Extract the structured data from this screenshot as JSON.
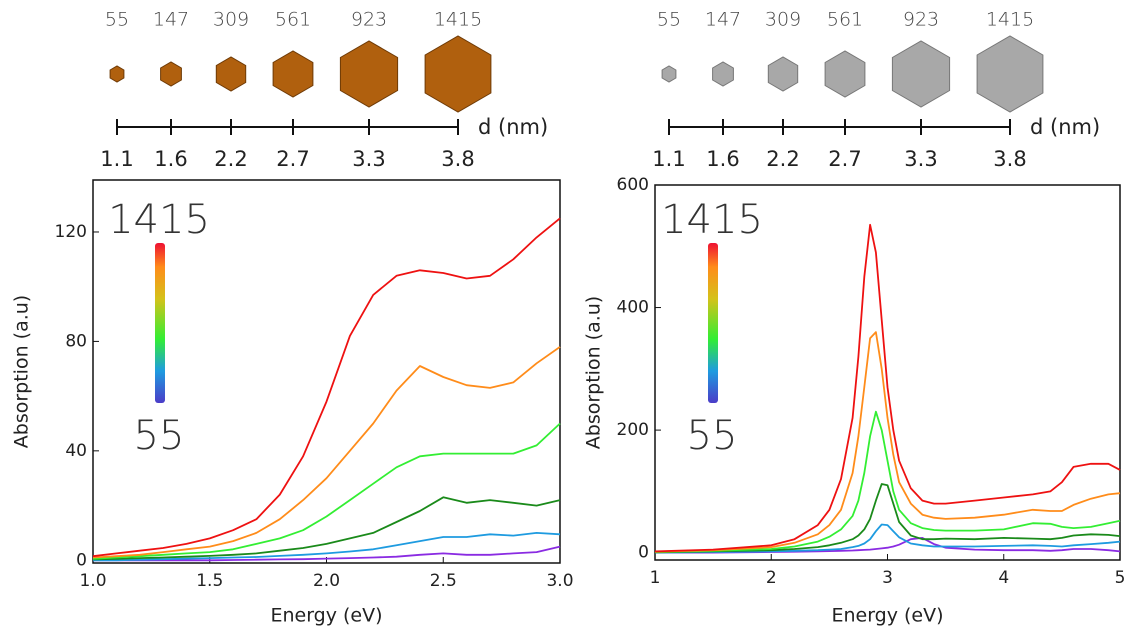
{
  "headers": [
    {
      "atoms": [
        55,
        147,
        309,
        561,
        923,
        1415
      ],
      "diameters": [
        1.1,
        1.6,
        2.2,
        2.7,
        3.3,
        3.8
      ],
      "d_label": "d (nm)"
    },
    {
      "atoms": [
        55,
        147,
        309,
        561,
        923,
        1415
      ],
      "diameters": [
        1.1,
        1.6,
        2.2,
        2.7,
        3.3,
        3.8
      ],
      "d_label": "d (nm)"
    }
  ],
  "chart_data": [
    {
      "type": "line",
      "x_label": "Energy (eV)",
      "y_label": "Absorption (a.u)",
      "colorbar": {
        "top": "1415",
        "bottom": "55"
      },
      "x": [
        1.0,
        1.1,
        1.2,
        1.3,
        1.4,
        1.5,
        1.6,
        1.7,
        1.8,
        1.9,
        2.0,
        2.1,
        2.2,
        2.3,
        2.4,
        2.5,
        2.6,
        2.7,
        2.8,
        2.9,
        3.0
      ],
      "xlim": [
        1.0,
        3.0
      ],
      "xticks": [
        {
          "value": 1.0,
          "label": "1.0"
        },
        1.5,
        {
          "value": 2.0,
          "label": "2.0"
        },
        2.5,
        {
          "value": 3.0,
          "label": "3.0"
        }
      ],
      "ylim": [
        -1,
        139
      ],
      "yticks": [
        0,
        40,
        80,
        120
      ],
      "series": [
        {
          "color": "#8a2be2",
          "values": [
            0,
            0,
            0,
            0,
            0,
            0,
            0.1,
            0.2,
            0.3,
            0.4,
            0.6,
            0.8,
            1,
            1.3,
            2,
            2.5,
            2,
            2,
            2.5,
            3,
            5
          ]
        },
        {
          "color": "#1e9be0",
          "values": [
            0,
            0,
            0.2,
            0.4,
            0.6,
            0.8,
            1,
            1.2,
            1.6,
            2,
            2.5,
            3.2,
            4,
            5.5,
            7,
            8.5,
            8.5,
            9.5,
            9,
            10,
            9.5
          ]
        },
        {
          "color": "#1a8a1a",
          "values": [
            0.3,
            0.5,
            0.8,
            1,
            1.3,
            1.6,
            2,
            2.5,
            3.5,
            4.5,
            6,
            8,
            10,
            14,
            18,
            23,
            21,
            22,
            21,
            20,
            22
          ]
        },
        {
          "color": "#33ee33",
          "values": [
            0.5,
            1,
            1.5,
            2,
            2.5,
            3,
            4,
            6,
            8,
            11,
            16,
            22,
            28,
            34,
            38,
            39,
            39,
            39,
            39,
            42,
            50
          ]
        },
        {
          "color": "#ff8c1a",
          "values": [
            1,
            1.5,
            2,
            3,
            4,
            5,
            7,
            10,
            15,
            22,
            30,
            40,
            50,
            62,
            71,
            67,
            64,
            63,
            65,
            72,
            78
          ]
        },
        {
          "color": "#ee1111",
          "values": [
            1.5,
            2.5,
            3.5,
            4.5,
            6,
            8,
            11,
            15,
            24,
            38,
            58,
            82,
            97,
            104,
            106,
            105,
            103,
            104,
            110,
            118,
            125
          ]
        }
      ]
    },
    {
      "type": "line",
      "x_label": "Energy (eV)",
      "y_label": "Absorption (a.u)",
      "colorbar": {
        "top": "1415",
        "bottom": "55"
      },
      "x": [
        1,
        1.5,
        2,
        2.2,
        2.4,
        2.5,
        2.6,
        2.7,
        2.75,
        2.8,
        2.85,
        2.9,
        2.95,
        3.0,
        3.05,
        3.1,
        3.2,
        3.3,
        3.4,
        3.5,
        3.75,
        4.0,
        4.25,
        4.4,
        4.5,
        4.6,
        4.75,
        4.9,
        5.0
      ],
      "xlim": [
        1,
        5
      ],
      "xticks": [
        1,
        2,
        3,
        4,
        5
      ],
      "ylim": [
        -12,
        600
      ],
      "yticks": [
        0,
        200,
        400,
        600
      ],
      "series": [
        {
          "color": "#8a2be2",
          "values": [
            0,
            0,
            1,
            1.5,
            2,
            2.5,
            3,
            3.5,
            4,
            4.5,
            5,
            6,
            7,
            8,
            10,
            13,
            22,
            24,
            14,
            8,
            5,
            4,
            4,
            3,
            4,
            6,
            6,
            4,
            2
          ]
        },
        {
          "color": "#1e9be0",
          "values": [
            0,
            1,
            2,
            3,
            4,
            5,
            6,
            9,
            11,
            15,
            22,
            35,
            46,
            45,
            35,
            25,
            15,
            12,
            10,
            10,
            10,
            11,
            12,
            11,
            10,
            12,
            14,
            16,
            18
          ]
        },
        {
          "color": "#1a8a1a",
          "values": [
            0.5,
            2,
            4,
            6,
            9,
            12,
            16,
            22,
            28,
            38,
            55,
            85,
            112,
            110,
            80,
            50,
            28,
            22,
            22,
            23,
            22,
            24,
            23,
            22,
            24,
            28,
            30,
            29,
            27
          ]
        },
        {
          "color": "#33ee33",
          "values": [
            1,
            3,
            6,
            10,
            18,
            26,
            38,
            60,
            85,
            130,
            190,
            230,
            200,
            150,
            100,
            70,
            48,
            40,
            37,
            36,
            36,
            38,
            48,
            47,
            42,
            40,
            42,
            48,
            52
          ]
        },
        {
          "color": "#ff8c1a",
          "values": [
            1.5,
            4,
            9,
            16,
            30,
            45,
            70,
            130,
            190,
            270,
            350,
            360,
            300,
            220,
            160,
            115,
            80,
            62,
            57,
            55,
            57,
            62,
            70,
            68,
            68,
            78,
            88,
            95,
            97
          ]
        },
        {
          "color": "#ee1111",
          "values": [
            2,
            5,
            12,
            22,
            45,
            70,
            120,
            220,
            320,
            450,
            535,
            490,
            380,
            270,
            200,
            150,
            105,
            85,
            80,
            80,
            85,
            90,
            95,
            100,
            115,
            140,
            145,
            145,
            135
          ]
        }
      ]
    }
  ]
}
